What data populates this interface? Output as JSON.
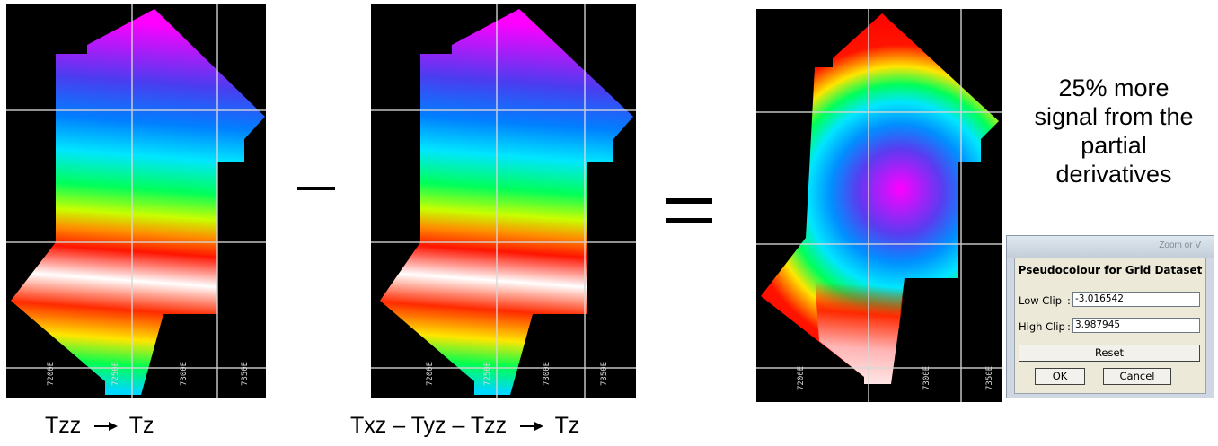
{
  "colors": {
    "background": "#000000",
    "grid_line": "#d8d8d8",
    "palette": [
      "#ff00ff",
      "#4b3cf0",
      "#0080ff",
      "#00e6ff",
      "#00ff5a",
      "#c8ff00",
      "#ffd200",
      "#ff7a00",
      "#ff1400",
      "#ffffff"
    ]
  },
  "panels": [
    {
      "id": "tzz",
      "tick_labels": [
        "7200E",
        "7250E",
        "7300E",
        "7350E"
      ]
    },
    {
      "id": "txz-tyz-tzz",
      "tick_labels": [
        "7200E",
        "7250E",
        "7300E",
        "7350E"
      ]
    },
    {
      "id": "difference",
      "tick_labels": [
        "7200E",
        "7300E",
        "7350E"
      ]
    }
  ],
  "operators": {
    "minus": "–",
    "equals": "="
  },
  "captions": {
    "left": [
      "Tzz",
      "Tz"
    ],
    "middle": [
      "Txz – Tyz – Tzz",
      "Tz"
    ]
  },
  "note_lines": [
    "25% more",
    "signal from the",
    "partial",
    "derivatives"
  ],
  "dialog": {
    "window_title": "Zoom or V",
    "title": "Pseudocolour for Grid Dataset",
    "low_clip_label": "Low Clip",
    "low_clip_value": "-3.016542",
    "high_clip_label": "High Clip",
    "high_clip_value": "3.987945",
    "reset_label": "Reset",
    "ok_label": "OK",
    "cancel_label": "Cancel"
  }
}
